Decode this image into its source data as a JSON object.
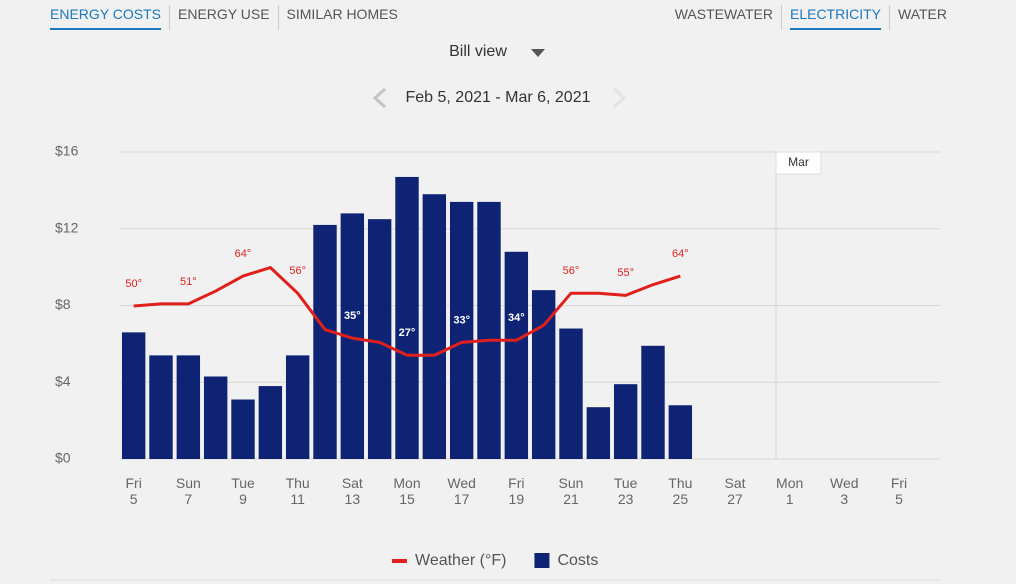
{
  "tabs": {
    "left": [
      {
        "label": "ENERGY COSTS",
        "active": true
      },
      {
        "label": "ENERGY USE",
        "active": false
      },
      {
        "label": "SIMILAR HOMES",
        "active": false
      }
    ],
    "right": [
      {
        "label": "WASTEWATER",
        "active": false
      },
      {
        "label": "ELECTRICITY",
        "active": true
      },
      {
        "label": "WATER",
        "active": false
      }
    ]
  },
  "view_selector": "Bill view",
  "date_range": "Feb 5, 2021 - Mar 6, 2021",
  "chart_data": {
    "type": "bar",
    "categories": [
      "Fri 5",
      null,
      "Sun 7",
      null,
      "Tue 9",
      null,
      "Thu 11",
      null,
      "Sat 13",
      null,
      "Mon 15",
      null,
      "Wed 17",
      null,
      "Fri 19",
      null,
      "Sun 21",
      null,
      "Tue 23",
      null,
      "Thu 25",
      null,
      "Sat 27",
      null,
      "Mon 1",
      null,
      "Wed 3",
      null,
      "Fri 5",
      null
    ],
    "series": [
      {
        "name": "Costs",
        "type": "bar",
        "color": "#0f2374",
        "values": [
          6.6,
          5.4,
          5.4,
          4.3,
          3.1,
          3.8,
          5.4,
          12.2,
          12.8,
          12.5,
          14.7,
          13.8,
          13.4,
          13.4,
          10.8,
          8.8,
          6.8,
          2.7,
          3.9,
          5.9,
          2.8,
          null,
          null,
          null,
          null,
          null,
          null,
          null,
          null,
          null
        ]
      },
      {
        "name": "Weather (°F)",
        "type": "line",
        "axis": "y2",
        "color": "#e0201b",
        "values": [
          50,
          51,
          51,
          57,
          64,
          68,
          56,
          39,
          35,
          33,
          27,
          27,
          33,
          34,
          34,
          41,
          56,
          56,
          55,
          60,
          64,
          null,
          null,
          null,
          null,
          null,
          null,
          null,
          null,
          null
        ],
        "value_labels": [
          "50°",
          null,
          "51°",
          null,
          "64°",
          null,
          "56°",
          null,
          "35°",
          null,
          "27°",
          null,
          "33°",
          null,
          "34°",
          null,
          "56°",
          null,
          "55°",
          null,
          "64°",
          null,
          null,
          null,
          null,
          null,
          null,
          null,
          null,
          null
        ]
      }
    ],
    "ylim": [
      0,
      16
    ],
    "yticks": [
      {
        "value": 0,
        "label": "$0"
      },
      {
        "value": 4,
        "label": "$4"
      },
      {
        "value": 8,
        "label": "$8"
      },
      {
        "value": 12,
        "label": "$12"
      },
      {
        "value": 16,
        "label": "$16"
      }
    ],
    "y2lim": [
      -21.5,
      122
    ],
    "grid": true,
    "annotations": [
      {
        "text": "Mar",
        "x": "Mon 1"
      }
    ],
    "legend": "bottom"
  }
}
